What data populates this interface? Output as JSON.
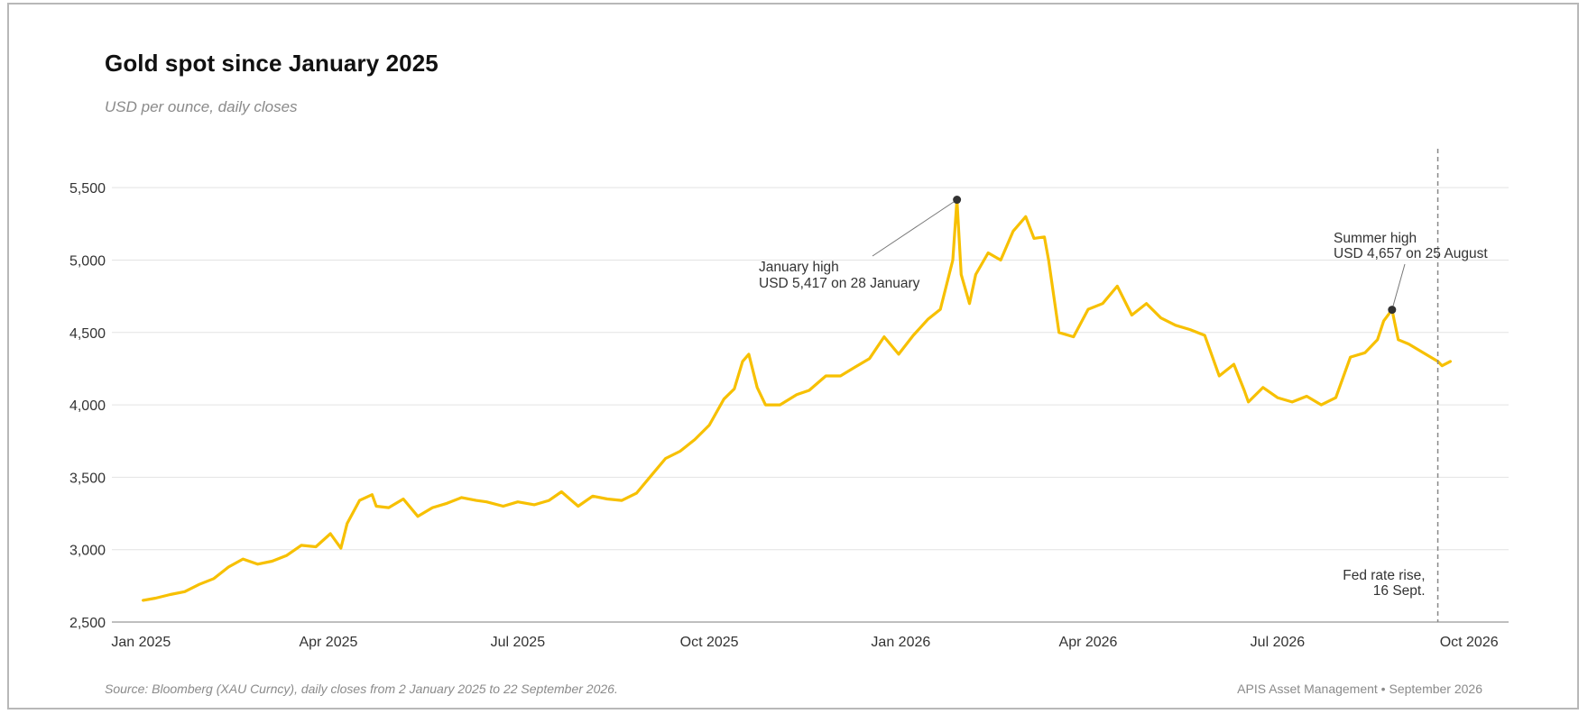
{
  "header": {
    "title": "Gold spot since January 2025",
    "subtitle": "USD per ounce, daily closes"
  },
  "footer": {
    "source": "Source: Bloomberg (XAU Curncy), daily closes from 2 January 2025 to 22 September 2026.",
    "credit": "APIS Asset Management • September 2026"
  },
  "colors": {
    "line": "#F7C000",
    "grid": "#e3e3e3",
    "axis": "#999999",
    "marker": "#333333",
    "event_line": "#888888"
  },
  "chart_data": {
    "type": "line",
    "title": "Gold spot since January 2025",
    "subtitle": "USD per ounce, daily closes",
    "xlabel": "",
    "ylabel": "",
    "ylim": [
      2500,
      5800
    ],
    "xlim": [
      "2024-12-18",
      "2026-10-20"
    ],
    "yticks": [
      2500,
      3000,
      3500,
      4000,
      4500,
      5000,
      5500
    ],
    "ytick_labels": [
      "2,500",
      "3,000",
      "3,500",
      "4,000",
      "4,500",
      "5,000",
      "5,500"
    ],
    "xticks": [
      {
        "date": "2025-01-01",
        "label": "Jan 2025"
      },
      {
        "date": "2025-04-01",
        "label": "Apr 2025"
      },
      {
        "date": "2025-07-01",
        "label": "Jul 2025"
      },
      {
        "date": "2025-10-01",
        "label": "Oct 2025"
      },
      {
        "date": "2026-01-01",
        "label": "Jan 2026"
      },
      {
        "date": "2026-04-01",
        "label": "Apr 2026"
      },
      {
        "date": "2026-07-01",
        "label": "Jul 2026"
      },
      {
        "date": "2026-10-01",
        "label": "Oct 2026"
      }
    ],
    "grid": true,
    "legend": "none",
    "series": [
      {
        "x": [
          "2025-01-02",
          "2025-01-08",
          "2025-01-15",
          "2025-01-22",
          "2025-01-29",
          "2025-02-05",
          "2025-02-12",
          "2025-02-19",
          "2025-02-26",
          "2025-03-05",
          "2025-03-12",
          "2025-03-19",
          "2025-03-26",
          "2025-04-02",
          "2025-04-07",
          "2025-04-10",
          "2025-04-16",
          "2025-04-22",
          "2025-04-24",
          "2025-04-30",
          "2025-05-07",
          "2025-05-14",
          "2025-05-21",
          "2025-05-28",
          "2025-06-04",
          "2025-06-11",
          "2025-06-16",
          "2025-06-24",
          "2025-07-01",
          "2025-07-09",
          "2025-07-16",
          "2025-07-22",
          "2025-07-30",
          "2025-08-06",
          "2025-08-13",
          "2025-08-20",
          "2025-08-27",
          "2025-09-03",
          "2025-09-10",
          "2025-09-17",
          "2025-09-24",
          "2025-10-01",
          "2025-10-08",
          "2025-10-13",
          "2025-10-17",
          "2025-10-20",
          "2025-10-24",
          "2025-10-28",
          "2025-11-04",
          "2025-11-12",
          "2025-11-18",
          "2025-11-26",
          "2025-12-03",
          "2025-12-10",
          "2025-12-17",
          "2025-12-24",
          "2025-12-31",
          "2026-01-07",
          "2026-01-14",
          "2026-01-20",
          "2026-01-26",
          "2026-01-28",
          "2026-01-30",
          "2026-02-03",
          "2026-02-06",
          "2026-02-12",
          "2026-02-18",
          "2026-02-24",
          "2026-03-02",
          "2026-03-06",
          "2026-03-11",
          "2026-03-13",
          "2026-03-18",
          "2026-03-25",
          "2026-04-01",
          "2026-04-08",
          "2026-04-15",
          "2026-04-22",
          "2026-04-29",
          "2026-05-06",
          "2026-05-13",
          "2026-05-20",
          "2026-05-27",
          "2026-06-03",
          "2026-06-10",
          "2026-06-15",
          "2026-06-17",
          "2026-06-24",
          "2026-07-01",
          "2026-07-08",
          "2026-07-15",
          "2026-07-22",
          "2026-07-29",
          "2026-08-05",
          "2026-08-12",
          "2026-08-18",
          "2026-08-21",
          "2026-08-25",
          "2026-08-28",
          "2026-09-02",
          "2026-09-09",
          "2026-09-16",
          "2026-09-18",
          "2026-09-22"
        ],
        "y": [
          2650,
          2665,
          2690,
          2710,
          2760,
          2800,
          2880,
          2935,
          2900,
          2920,
          2960,
          3030,
          3020,
          3110,
          3010,
          3180,
          3340,
          3380,
          3300,
          3290,
          3350,
          3230,
          3290,
          3320,
          3360,
          3340,
          3330,
          3300,
          3330,
          3310,
          3340,
          3400,
          3300,
          3370,
          3350,
          3340,
          3390,
          3510,
          3630,
          3680,
          3760,
          3860,
          4040,
          4110,
          4300,
          4350,
          4120,
          4000,
          4000,
          4070,
          4100,
          4200,
          4200,
          4260,
          4320,
          4470,
          4350,
          4480,
          4590,
          4660,
          5000,
          5417,
          4900,
          4700,
          4900,
          5050,
          5000,
          5200,
          5300,
          5150,
          5160,
          5000,
          4500,
          4470,
          4660,
          4700,
          4820,
          4620,
          4700,
          4600,
          4550,
          4520,
          4480,
          4200,
          4280,
          4100,
          4020,
          4120,
          4050,
          4020,
          4060,
          4000,
          4050,
          4330,
          4360,
          4450,
          4580,
          4657,
          4450,
          4420,
          4360,
          4300,
          4270,
          4300
        ]
      }
    ],
    "annotations": [
      {
        "text1": "January high",
        "text2": "USD 5,417 on 28 January",
        "x": "2026-01-28",
        "y": 5417
      },
      {
        "text1": "Summer high",
        "text2": "USD 4,657 on 25 August",
        "x": "2026-08-25",
        "y": 4657
      },
      {
        "text1": "Fed rate rise,",
        "text2": "16 Sept.",
        "x": "2026-09-16"
      }
    ]
  }
}
